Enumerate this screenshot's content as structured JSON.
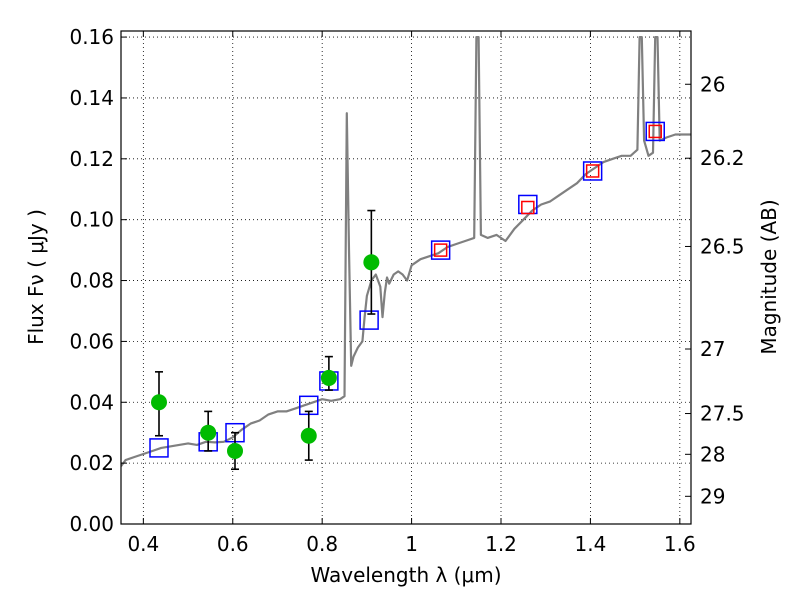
{
  "chart_data": {
    "type": "scatter",
    "xlabel": "Wavelength  λ (μm)",
    "ylabel": "Flux  Fν  ( μJy )",
    "y2label": "Magnitude (AB)",
    "xlim": [
      0.35,
      1.625
    ],
    "ylim": [
      0.0,
      0.162
    ],
    "grid": true,
    "x_ticks": [
      0.4,
      0.6,
      0.8,
      1.0,
      1.2,
      1.4,
      1.6
    ],
    "x_tick_labels": [
      "0.4",
      "0.6",
      "0.8",
      "1",
      "1.2",
      "1.4",
      "1.6"
    ],
    "y_ticks": [
      0.0,
      0.02,
      0.04,
      0.06,
      0.08,
      0.1,
      0.12,
      0.14,
      0.16
    ],
    "y_tick_labels": [
      "0.00",
      "0.02",
      "0.04",
      "0.06",
      "0.08",
      "0.10",
      "0.12",
      "0.14",
      "0.16"
    ],
    "y2_ticks": [
      {
        "label": "26",
        "flux": 0.1445
      },
      {
        "label": "26.2",
        "flux": 0.1202
      },
      {
        "label": "26.5",
        "flux": 0.0912
      },
      {
        "label": "27",
        "flux": 0.0575
      },
      {
        "label": "27.5",
        "flux": 0.0363
      },
      {
        "label": "28",
        "flux": 0.0229
      },
      {
        "label": "29",
        "flux": 0.0091
      }
    ],
    "series": [
      {
        "kind": "line",
        "color": "#808080",
        "points": [
          [
            0.35,
            0.019
          ],
          [
            0.36,
            0.021
          ],
          [
            0.38,
            0.022
          ],
          [
            0.4,
            0.023
          ],
          [
            0.42,
            0.024
          ],
          [
            0.44,
            0.025
          ],
          [
            0.46,
            0.0255
          ],
          [
            0.48,
            0.026
          ],
          [
            0.5,
            0.0265
          ],
          [
            0.52,
            0.026
          ],
          [
            0.54,
            0.027
          ],
          [
            0.56,
            0.0268
          ],
          [
            0.58,
            0.027
          ],
          [
            0.6,
            0.0285
          ],
          [
            0.62,
            0.031
          ],
          [
            0.64,
            0.033
          ],
          [
            0.66,
            0.034
          ],
          [
            0.68,
            0.036
          ],
          [
            0.7,
            0.037
          ],
          [
            0.72,
            0.037
          ],
          [
            0.74,
            0.038
          ],
          [
            0.76,
            0.039
          ],
          [
            0.78,
            0.04
          ],
          [
            0.8,
            0.041
          ],
          [
            0.82,
            0.0405
          ],
          [
            0.84,
            0.041
          ],
          [
            0.85,
            0.042
          ],
          [
            0.855,
            0.135
          ],
          [
            0.86,
            0.09
          ],
          [
            0.865,
            0.052
          ],
          [
            0.87,
            0.055
          ],
          [
            0.88,
            0.058
          ],
          [
            0.89,
            0.06
          ],
          [
            0.895,
            0.068
          ],
          [
            0.9,
            0.075
          ],
          [
            0.91,
            0.08
          ],
          [
            0.92,
            0.082
          ],
          [
            0.93,
            0.078
          ],
          [
            0.935,
            0.068
          ],
          [
            0.94,
            0.076
          ],
          [
            0.945,
            0.081
          ],
          [
            0.95,
            0.079
          ],
          [
            0.96,
            0.082
          ],
          [
            0.97,
            0.083
          ],
          [
            0.98,
            0.082
          ],
          [
            0.99,
            0.08
          ],
          [
            1.0,
            0.085
          ],
          [
            1.02,
            0.087
          ],
          [
            1.04,
            0.088
          ],
          [
            1.06,
            0.089
          ],
          [
            1.08,
            0.091
          ],
          [
            1.1,
            0.092
          ],
          [
            1.12,
            0.093
          ],
          [
            1.14,
            0.094
          ],
          [
            1.145,
            0.16
          ],
          [
            1.15,
            0.16
          ],
          [
            1.155,
            0.095
          ],
          [
            1.17,
            0.094
          ],
          [
            1.19,
            0.095
          ],
          [
            1.21,
            0.093
          ],
          [
            1.23,
            0.097
          ],
          [
            1.25,
            0.1
          ],
          [
            1.27,
            0.103
          ],
          [
            1.29,
            0.105
          ],
          [
            1.31,
            0.106
          ],
          [
            1.33,
            0.108
          ],
          [
            1.35,
            0.11
          ],
          [
            1.37,
            0.112
          ],
          [
            1.39,
            0.115
          ],
          [
            1.41,
            0.117
          ],
          [
            1.43,
            0.119
          ],
          [
            1.45,
            0.12
          ],
          [
            1.47,
            0.121
          ],
          [
            1.49,
            0.121
          ],
          [
            1.505,
            0.123
          ],
          [
            1.51,
            0.16
          ],
          [
            1.515,
            0.16
          ],
          [
            1.52,
            0.126
          ],
          [
            1.53,
            0.121
          ],
          [
            1.54,
            0.122
          ],
          [
            1.545,
            0.16
          ],
          [
            1.55,
            0.16
          ],
          [
            1.555,
            0.126
          ],
          [
            1.57,
            0.127
          ],
          [
            1.59,
            0.128
          ],
          [
            1.61,
            0.128
          ],
          [
            1.625,
            0.128
          ]
        ]
      },
      {
        "kind": "squares",
        "color": "#0000ff",
        "points": [
          [
            0.435,
            0.025
          ],
          [
            0.545,
            0.027
          ],
          [
            0.605,
            0.03
          ],
          [
            0.77,
            0.039
          ],
          [
            0.815,
            0.047
          ],
          [
            0.905,
            0.067
          ],
          [
            1.065,
            0.09
          ],
          [
            1.26,
            0.105
          ],
          [
            1.405,
            0.116
          ],
          [
            1.545,
            0.129
          ]
        ]
      },
      {
        "kind": "squares",
        "color": "#ff0000",
        "points": [
          [
            1.065,
            0.09
          ],
          [
            1.26,
            0.104
          ],
          [
            1.405,
            0.116
          ],
          [
            1.545,
            0.129
          ]
        ]
      },
      {
        "kind": "points_errorbars",
        "color": "#00bb00",
        "points": [
          {
            "x": 0.435,
            "y": 0.04,
            "lo": 0.029,
            "hi": 0.05
          },
          {
            "x": 0.545,
            "y": 0.03,
            "lo": 0.024,
            "hi": 0.037
          },
          {
            "x": 0.605,
            "y": 0.024,
            "lo": 0.018,
            "hi": 0.03
          },
          {
            "x": 0.77,
            "y": 0.029,
            "lo": 0.021,
            "hi": 0.037
          },
          {
            "x": 0.815,
            "y": 0.048,
            "lo": 0.044,
            "hi": 0.055
          },
          {
            "x": 0.91,
            "y": 0.086,
            "lo": 0.069,
            "hi": 0.103
          }
        ]
      }
    ]
  }
}
